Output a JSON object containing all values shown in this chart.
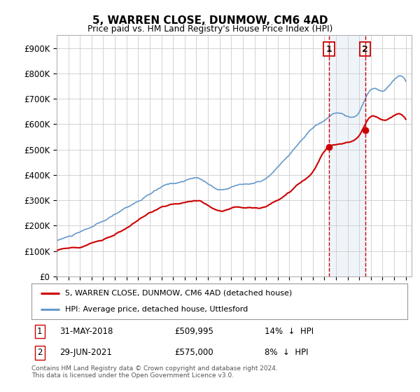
{
  "title": "5, WARREN CLOSE, DUNMOW, CM6 4AD",
  "subtitle": "Price paid vs. HM Land Registry's House Price Index (HPI)",
  "ylabel_ticks": [
    "£0",
    "£100K",
    "£200K",
    "£300K",
    "£400K",
    "£500K",
    "£600K",
    "£700K",
    "£800K",
    "£900K"
  ],
  "ytick_values": [
    0,
    100000,
    200000,
    300000,
    400000,
    500000,
    600000,
    700000,
    800000,
    900000
  ],
  "ylim": [
    0,
    950000
  ],
  "xlim_start": 1995.0,
  "xlim_end": 2025.5,
  "legend_line1": "5, WARREN CLOSE, DUNMOW, CM6 4AD (detached house)",
  "legend_line2": "HPI: Average price, detached house, Uttlesford",
  "marker1_x": 2018.42,
  "marker1_y": 509995,
  "marker2_x": 2021.5,
  "marker2_y": 575000,
  "footnote": "Contains HM Land Registry data © Crown copyright and database right 2024.\nThis data is licensed under the Open Government Licence v3.0.",
  "color_red": "#cc0000",
  "color_blue": "#6699cc",
  "color_vline": "#cc0000",
  "background_color": "#ffffff",
  "grid_color": "#cccccc",
  "hpi_anchors_x": [
    1995,
    1996,
    1997,
    1998,
    1999,
    2000,
    2001,
    2002,
    2003,
    2004,
    2005,
    2006,
    2007,
    2008,
    2009,
    2010,
    2011,
    2012,
    2013,
    2014,
    2015,
    2016,
    2017,
    2018,
    2019,
    2020,
    2021,
    2022,
    2023,
    2024,
    2025
  ],
  "hpi_anchors_y": [
    140000,
    155000,
    170000,
    190000,
    210000,
    235000,
    265000,
    290000,
    315000,
    340000,
    355000,
    365000,
    375000,
    355000,
    330000,
    345000,
    355000,
    360000,
    375000,
    415000,
    465000,
    515000,
    565000,
    595000,
    625000,
    615000,
    630000,
    720000,
    715000,
    760000,
    755000
  ],
  "red_anchors_x": [
    1995,
    1996,
    1997,
    1998,
    1999,
    2000,
    2001,
    2002,
    2003,
    2004,
    2005,
    2006,
    2007,
    2008,
    2009,
    2010,
    2011,
    2012,
    2013,
    2014,
    2015,
    2016,
    2017,
    2018,
    2019,
    2020,
    2021,
    2022,
    2023,
    2024,
    2025
  ],
  "red_anchors_y": [
    100000,
    110000,
    120000,
    135000,
    150000,
    170000,
    195000,
    220000,
    245000,
    265000,
    280000,
    290000,
    295000,
    278000,
    258000,
    268000,
    272000,
    273000,
    280000,
    310000,
    345000,
    385000,
    425000,
    509995,
    538000,
    548000,
    575000,
    648000,
    635000,
    655000,
    640000
  ]
}
